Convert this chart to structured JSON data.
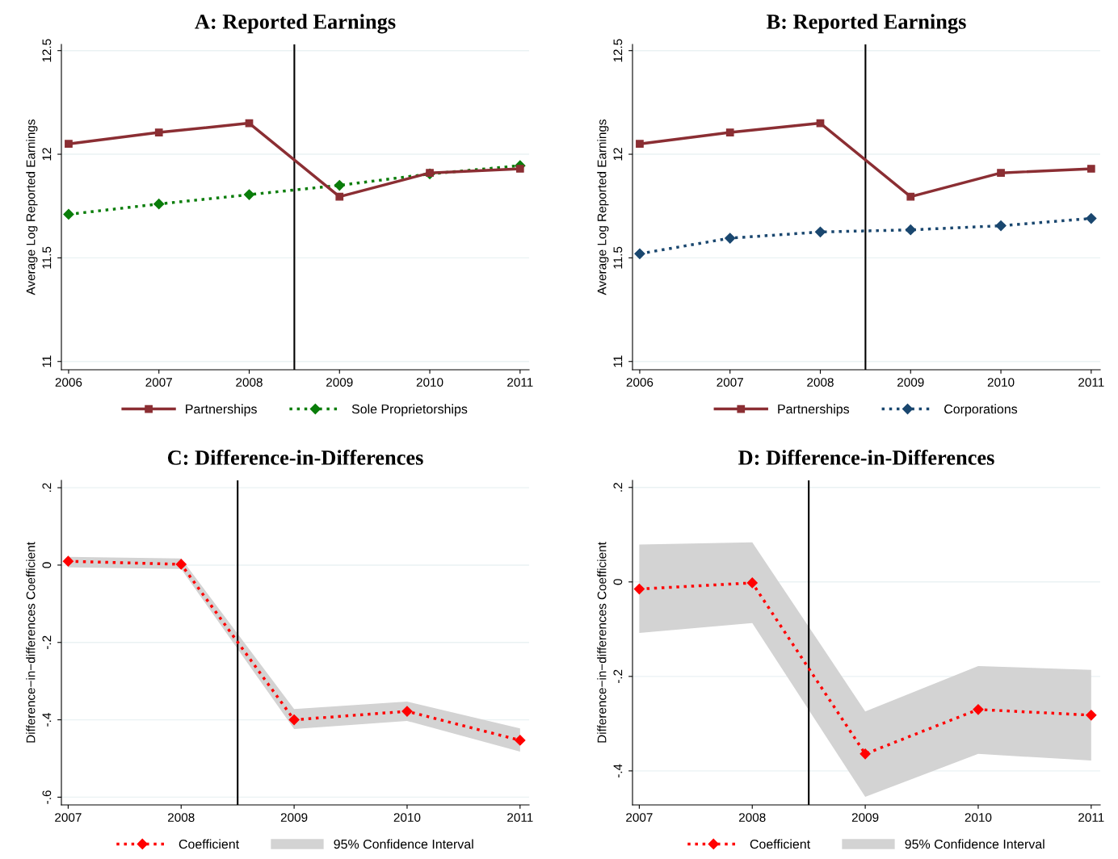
{
  "chart_data": [
    {
      "type": "line",
      "title": "A: Reported Earnings",
      "ylabel": "Average Log Reported Earnings",
      "x": [
        2006,
        2007,
        2008,
        2009,
        2010,
        2011
      ],
      "xlim": [
        2005.92,
        2011.1
      ],
      "xticks": [
        2006,
        2007,
        2008,
        2009,
        2010,
        2011
      ],
      "ylim": [
        10.96,
        12.53
      ],
      "yticks": [
        11,
        11.5,
        12,
        12.5
      ],
      "grid": "y",
      "legend": "bottom",
      "ref_lines": [
        {
          "axis": "x",
          "value": 2008.5,
          "color": "#000000"
        }
      ],
      "series": [
        {
          "name": "Partnerships",
          "color": "#8b2e33",
          "marker": "square",
          "line_style": "solid",
          "values": [
            12.05,
            12.105,
            12.15,
            11.795,
            11.91,
            11.93
          ]
        },
        {
          "name": "Sole Proprietorships",
          "color": "#0a7d0a",
          "marker": "diamond",
          "line_style": "dotted",
          "values": [
            11.71,
            11.76,
            11.805,
            11.85,
            11.905,
            11.945
          ]
        }
      ]
    },
    {
      "type": "line",
      "title": "B: Reported Earnings",
      "ylabel": "Average Log Reported Earnings",
      "x": [
        2006,
        2007,
        2008,
        2009,
        2010,
        2011
      ],
      "xlim": [
        2005.92,
        2011.1
      ],
      "xticks": [
        2006,
        2007,
        2008,
        2009,
        2010,
        2011
      ],
      "ylim": [
        10.96,
        12.53
      ],
      "yticks": [
        11,
        11.5,
        12,
        12.5
      ],
      "grid": "y",
      "legend": "bottom",
      "ref_lines": [
        {
          "axis": "x",
          "value": 2008.5,
          "color": "#000000"
        }
      ],
      "series": [
        {
          "name": "Partnerships",
          "color": "#8b2e33",
          "marker": "square",
          "line_style": "solid",
          "values": [
            12.05,
            12.105,
            12.15,
            11.795,
            11.91,
            11.93
          ]
        },
        {
          "name": "Corporations",
          "color": "#1a476f",
          "marker": "diamond",
          "line_style": "dotted",
          "values": [
            11.52,
            11.595,
            11.625,
            11.635,
            11.655,
            11.69
          ]
        }
      ]
    },
    {
      "type": "line",
      "title": "C: Difference-in-Differences",
      "ylabel": "Difference−in−differences Coefficient",
      "x": [
        2007,
        2008,
        2009,
        2010,
        2011
      ],
      "xlim": [
        2006.94,
        2011.08
      ],
      "xticks": [
        2007,
        2008,
        2009,
        2010,
        2011
      ],
      "ylim": [
        -0.62,
        0.219
      ],
      "yticks": [
        {
          "value": -0.6,
          "label": "-.6"
        },
        {
          "value": -0.4,
          "label": "-.4"
        },
        {
          "value": -0.2,
          "label": "-.2"
        },
        0,
        {
          "value": 0.2,
          "label": ".2"
        }
      ],
      "grid": "y",
      "legend": "bottom",
      "ref_lines": [
        {
          "axis": "x",
          "value": 2008.5,
          "color": "#000000"
        }
      ],
      "series": [
        {
          "name": "Coefficient",
          "color": "#ff0000",
          "marker": "diamond",
          "line_style": "dotted",
          "values": [
            0.01,
            0.002,
            -0.4,
            -0.378,
            -0.453
          ]
        },
        {
          "name": "95% Confidence Interval",
          "color": "#d3d3d3",
          "values": [
            null,
            null,
            null,
            null,
            null
          ],
          "upper": [
            0.021,
            0.017,
            -0.372,
            -0.353,
            -0.422
          ],
          "lower": [
            -0.006,
            -0.01,
            -0.424,
            -0.403,
            -0.482
          ]
        }
      ]
    },
    {
      "type": "line",
      "title": "D: Difference-in-Differences",
      "ylabel": "Difference−in−differences Coefficient",
      "x": [
        2007,
        2008,
        2009,
        2010,
        2011
      ],
      "xlim": [
        2006.94,
        2011.08
      ],
      "xticks": [
        2007,
        2008,
        2009,
        2010,
        2011
      ],
      "ylim": [
        -0.472,
        0.215
      ],
      "yticks": [
        {
          "value": -0.4,
          "label": "-.4"
        },
        {
          "value": -0.2,
          "label": "-.2"
        },
        0,
        {
          "value": 0.2,
          "label": ".2"
        }
      ],
      "grid": "y",
      "legend": "bottom",
      "ref_lines": [
        {
          "axis": "x",
          "value": 2008.5,
          "color": "#000000"
        }
      ],
      "series": [
        {
          "name": "Coefficient",
          "color": "#ff0000",
          "marker": "diamond",
          "line_style": "dotted",
          "values": [
            -0.015,
            -0.002,
            -0.364,
            -0.27,
            -0.282
          ]
        },
        {
          "name": "95% Confidence Interval",
          "color": "#d3d3d3",
          "values": [
            null,
            null,
            null,
            null,
            null
          ],
          "upper": [
            0.079,
            0.084,
            -0.274,
            -0.178,
            -0.186
          ],
          "lower": [
            -0.108,
            -0.087,
            -0.455,
            -0.364,
            -0.378
          ]
        }
      ]
    }
  ]
}
